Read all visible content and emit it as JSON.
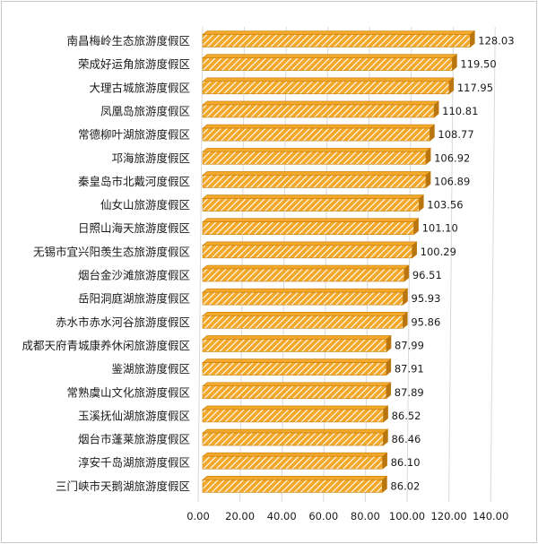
{
  "chart_data": {
    "type": "bar",
    "orientation": "horizontal",
    "title": "",
    "xlabel": "",
    "ylabel": "",
    "categories": [
      "南昌梅岭生态旅游度假区",
      "荣成好运角旅游度假区",
      "大理古城旅游度假区",
      "凤凰岛旅游度假区",
      "常德柳叶湖旅游度假区",
      "邛海旅游度假区",
      "秦皇岛市北戴河度假区",
      "仙女山旅游度假区",
      "日照山海天旅游度假区",
      "无锡市宜兴阳羡生态旅游度假区",
      "烟台金沙滩旅游度假区",
      "岳阳洞庭湖旅游度假区",
      "赤水市赤水河谷旅游度假区",
      "成都天府青城康养休闲旅游度假区",
      "鉴湖旅游度假区",
      "常熟虞山文化旅游度假区",
      "玉溪抚仙湖旅游度假区",
      "烟台市蓬莱旅游度假区",
      "淳安千岛湖旅游度假区",
      "三门峡市天鹅湖旅游度假区"
    ],
    "values": [
      128.03,
      119.5,
      117.95,
      110.81,
      108.77,
      106.92,
      106.89,
      103.56,
      101.1,
      100.29,
      96.51,
      95.93,
      95.86,
      87.99,
      87.91,
      87.89,
      86.52,
      86.46,
      86.1,
      86.02
    ],
    "value_labels": [
      "128.03",
      "119.50",
      "117.95",
      "110.81",
      "108.77",
      "106.92",
      "106.89",
      "103.56",
      "101.10",
      "100.29",
      "96.51",
      "95.93",
      "95.86",
      "87.99",
      "87.91",
      "87.89",
      "86.52",
      "86.46",
      "86.10",
      "86.02"
    ],
    "xlim": [
      0,
      140
    ],
    "x_ticks": [
      "0.00",
      "20.00",
      "40.00",
      "60.00",
      "80.00",
      "100.00",
      "120.00",
      "140.00"
    ],
    "grid": true,
    "legend": "none",
    "colors": {
      "bar_fill": "#f3a829",
      "bar_hatch": "#ffffff",
      "bar_edge": "#c47d0e",
      "bar_side": "#b87510",
      "grid": "#d9d9d9",
      "text": "#1a1a1a"
    }
  }
}
